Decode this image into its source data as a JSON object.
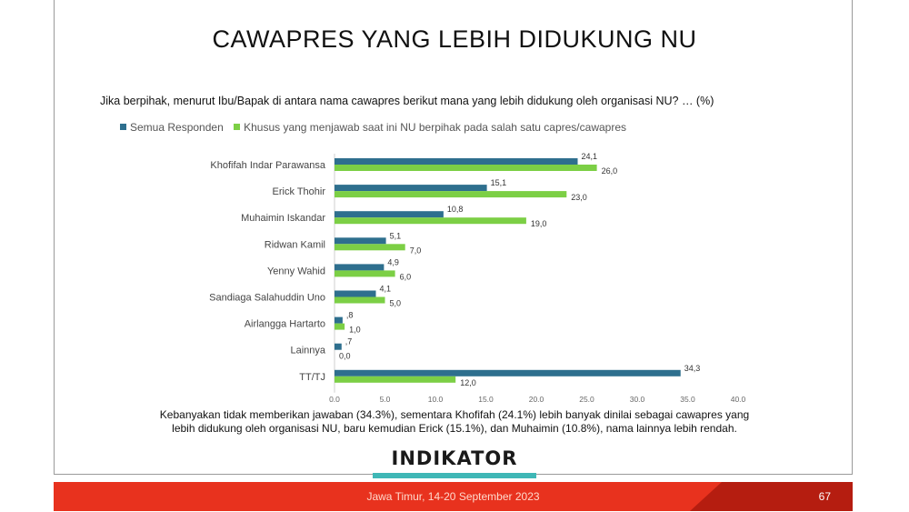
{
  "slide": {
    "title": "CAWAPRES YANG LEBIH DIDUKUNG NU",
    "question": "Jika berpihak, menurut Ibu/Bapak di antara nama cawapres berikut mana yang lebih didukung oleh organisasi NU? … (%)",
    "summary_line1": "Kebanyakan tidak memberikan jawaban (34.3%), sementara Khofifah (24.1%) lebih banyak dinilai sebagai cawapres yang",
    "summary_line2": "lebih didukung oleh organisasi NU, baru kemudian Erick (15.1%), dan Muhaimin (10.8%), nama lainnya lebih rendah.",
    "logo_text": "INDIKATOR",
    "footer_text": "Jawa Timur, 14-20 September 2023",
    "page_number": "67"
  },
  "legend": {
    "series1": "Semua Responden",
    "series2": "Khusus yang menjawab saat ini NU berpihak pada salah satu capres/cawapres"
  },
  "colors": {
    "series1": "#2e6f8e",
    "series2": "#7ccf45",
    "footer_red": "#e8321e",
    "footer_dark": "#b51d10",
    "logo_bar": "#3fb7b6"
  },
  "chart_data": {
    "type": "bar",
    "orientation": "horizontal",
    "categories": [
      "Khofifah Indar Parawansa",
      "Erick Thohir",
      "Muhaimin Iskandar",
      "Ridwan Kamil",
      "Yenny Wahid",
      "Sandiaga Salahuddin Uno",
      "Airlangga Hartarto",
      "Lainnya",
      "TT/TJ"
    ],
    "series": [
      {
        "name": "Semua Responden",
        "values": [
          24.1,
          15.1,
          10.8,
          5.1,
          4.9,
          4.1,
          0.8,
          0.7,
          34.3
        ],
        "labels": [
          "24,1",
          "15,1",
          "10,8",
          "5,1",
          "4,9",
          "4,1",
          ",8",
          ",7",
          "34,3"
        ]
      },
      {
        "name": "Khusus yang menjawab saat ini NU berpihak pada salah satu capres/cawapres",
        "values": [
          26.0,
          23.0,
          19.0,
          7.0,
          6.0,
          5.0,
          1.0,
          0.0,
          12.0
        ],
        "labels": [
          "26,0",
          "23,0",
          "19,0",
          "7,0",
          "6,0",
          "5,0",
          "1,0",
          "0,0",
          "12,0"
        ]
      }
    ],
    "xlim": [
      0,
      40
    ],
    "xticks": [
      "0.0",
      "5.0",
      "10.0",
      "15.0",
      "20.0",
      "25.0",
      "30.0",
      "35.0",
      "40.0"
    ],
    "grid": false,
    "legend_position": "top-left"
  }
}
